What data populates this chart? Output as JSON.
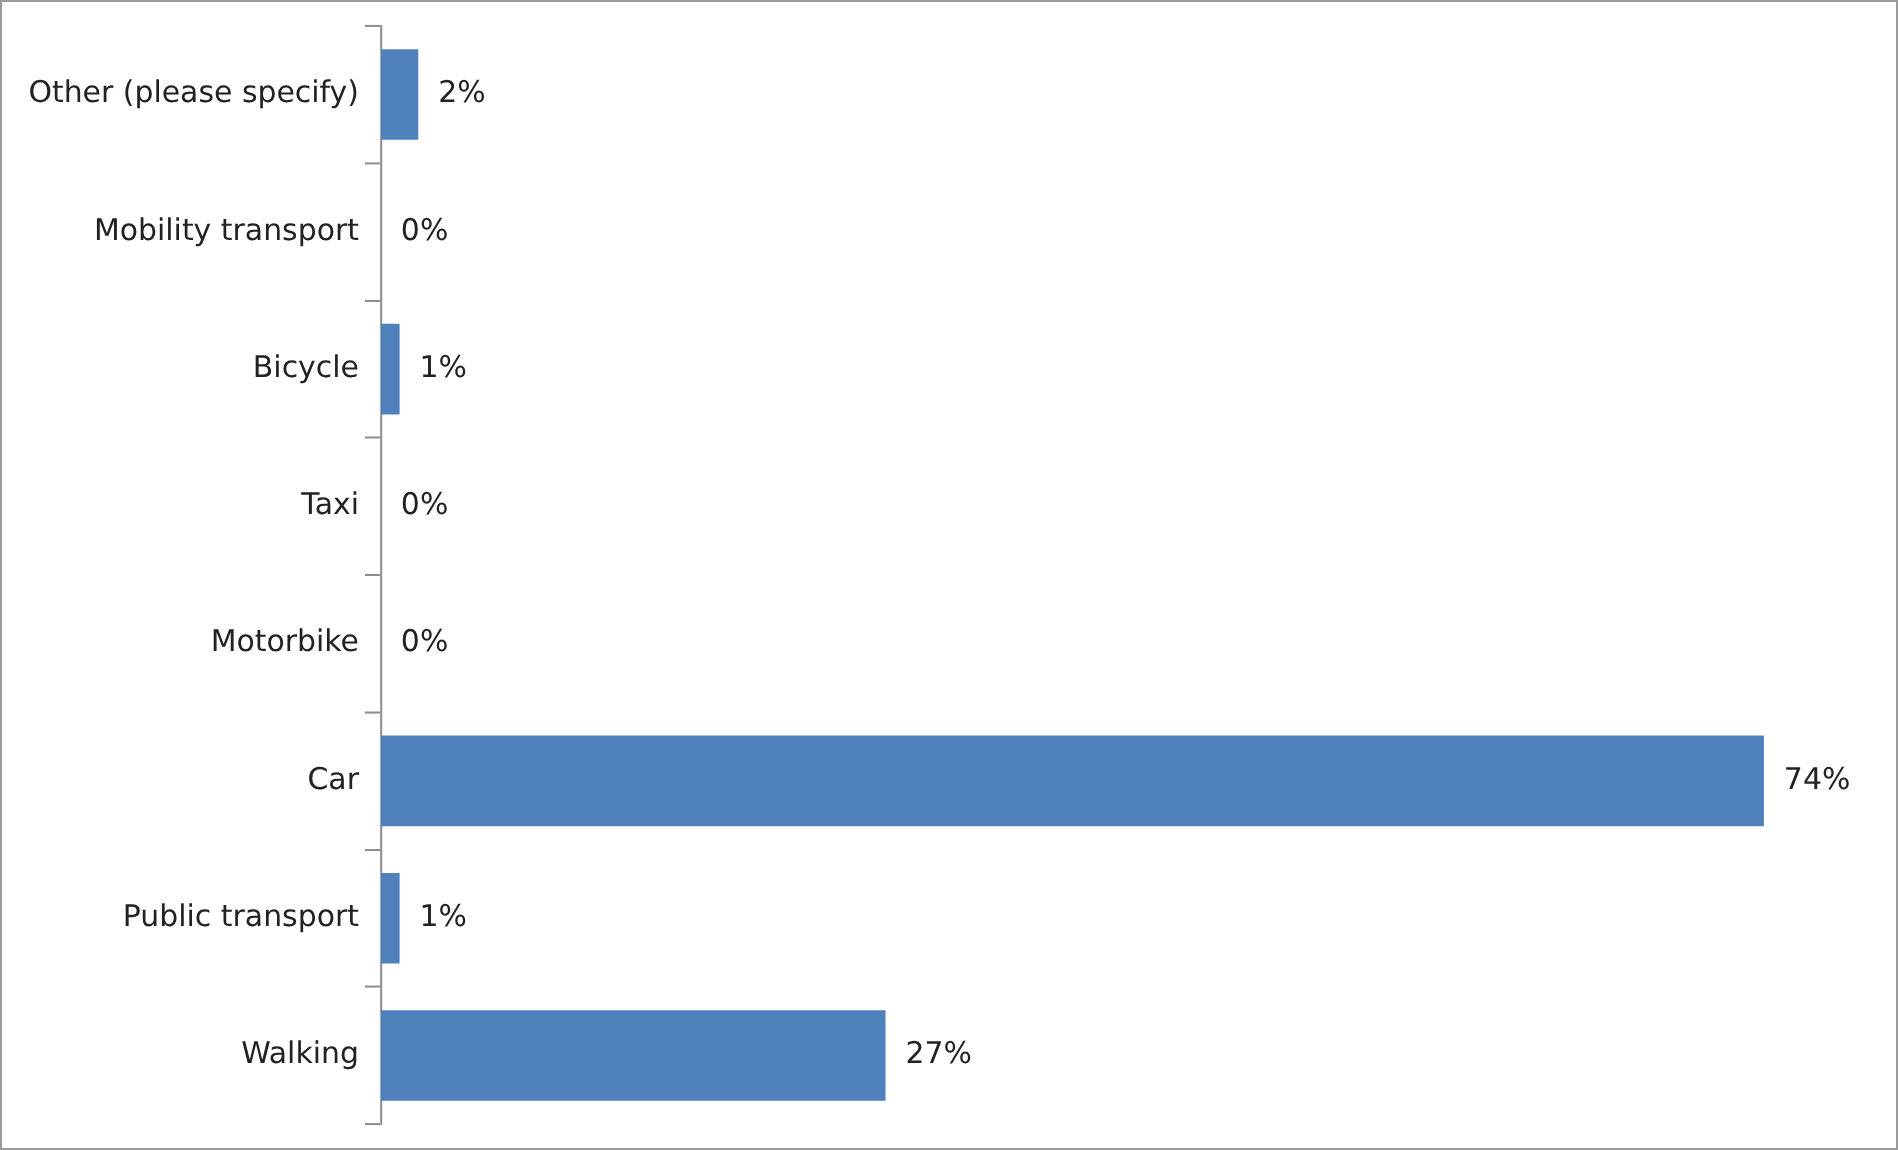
{
  "chart_data": {
    "type": "bar",
    "orientation": "horizontal",
    "categories": [
      "Other (please specify)",
      "Mobility transport",
      "Bicycle",
      "Taxi",
      "Motorbike",
      "Car",
      "Public transport",
      "Walking"
    ],
    "values": [
      2,
      0,
      1,
      0,
      0,
      74,
      1,
      27
    ],
    "value_labels": [
      "2%",
      "0%",
      "1%",
      "0%",
      "0%",
      "74%",
      "1%",
      "27%"
    ],
    "color": "#4f81bd",
    "grid": false,
    "legend": false
  }
}
